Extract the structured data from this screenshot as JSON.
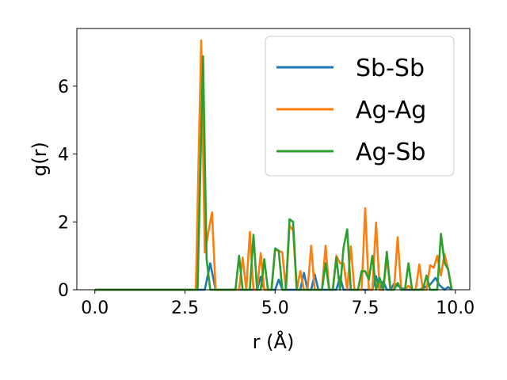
{
  "chart_data": {
    "type": "line",
    "title": "",
    "xlabel": "r (Å)",
    "ylabel": "g(r)",
    "xlim": [
      -0.5,
      10.4
    ],
    "ylim": [
      0,
      7.7
    ],
    "xticks": [
      0.0,
      2.5,
      5.0,
      7.5,
      10.0
    ],
    "xtick_labels": [
      "0.0",
      "2.5",
      "5.0",
      "7.5",
      "10.0"
    ],
    "yticks": [
      0,
      2,
      4,
      6
    ],
    "ytick_labels": [
      "0",
      "2",
      "4",
      "6"
    ],
    "grid": false,
    "legend_position": "top-right",
    "series": [
      {
        "name": "Sb-Sb",
        "color": "#1f77b4",
        "x": [
          0.0,
          2.7,
          2.85,
          2.95,
          3.05,
          3.2,
          3.35,
          4.5,
          4.6,
          4.7,
          5.0,
          5.1,
          5.2,
          5.7,
          5.8,
          5.9,
          6.0,
          6.1,
          6.2,
          6.7,
          6.8,
          6.9,
          7.7,
          7.8,
          7.9,
          8.0,
          8.1,
          8.2,
          8.3,
          8.6,
          8.8,
          9.0,
          9.3,
          9.45,
          9.55,
          9.7,
          9.8,
          9.9
        ],
        "y": [
          0.0,
          0.0,
          0.0,
          0.0,
          0.0,
          0.78,
          0.0,
          0.0,
          0.38,
          0.0,
          0.0,
          0.3,
          0.0,
          0.0,
          0.5,
          0.0,
          0.0,
          0.45,
          0.0,
          0.0,
          0.38,
          0.0,
          0.0,
          0.4,
          0.0,
          0.25,
          0.0,
          0.0,
          0.18,
          0.0,
          0.0,
          0.0,
          0.15,
          0.35,
          0.15,
          0.0,
          0.08,
          0.0
        ]
      },
      {
        "name": "Ag-Ag",
        "color": "#ff7f0e",
        "x": [
          0.0,
          2.7,
          2.8,
          2.95,
          3.05,
          3.15,
          3.25,
          3.35,
          3.9,
          4.0,
          4.1,
          4.2,
          4.3,
          4.4,
          4.5,
          4.6,
          4.7,
          4.8,
          4.9,
          5.0,
          5.1,
          5.2,
          5.3,
          5.4,
          5.5,
          5.6,
          5.7,
          5.8,
          5.9,
          6.0,
          6.1,
          6.2,
          6.3,
          6.4,
          6.5,
          6.6,
          6.7,
          6.8,
          6.9,
          7.0,
          7.1,
          7.2,
          7.3,
          7.4,
          7.5,
          7.6,
          7.7,
          7.8,
          7.9,
          8.0,
          8.1,
          8.2,
          8.3,
          8.4,
          8.5,
          8.6,
          8.7,
          8.8,
          8.9,
          9.0,
          9.1,
          9.2,
          9.3,
          9.4,
          9.5,
          9.6,
          9.7,
          9.8,
          9.9
        ],
        "y": [
          0.0,
          0.0,
          0.0,
          7.35,
          1.1,
          1.7,
          2.28,
          0.0,
          0.0,
          0.0,
          0.95,
          0.0,
          1.7,
          0.0,
          0.0,
          1.08,
          0.0,
          0.0,
          0.0,
          1.18,
          1.15,
          1.1,
          0.0,
          1.9,
          1.75,
          0.0,
          0.55,
          0.0,
          0.0,
          1.3,
          0.0,
          0.0,
          0.0,
          1.3,
          0.0,
          0.0,
          1.0,
          0.78,
          0.78,
          0.0,
          1.28,
          0.0,
          0.0,
          0.0,
          2.4,
          0.0,
          0.0,
          1.98,
          0.0,
          0.0,
          0.95,
          0.0,
          0.0,
          1.55,
          0.0,
          0.0,
          0.12,
          0.0,
          0.0,
          0.75,
          0.0,
          0.0,
          0.72,
          0.65,
          1.0,
          0.42,
          1.05,
          0.6,
          0.0
        ]
      },
      {
        "name": "Ag-Sb",
        "color": "#2ca02c",
        "x": [
          0.0,
          2.7,
          2.85,
          3.0,
          3.1,
          3.2,
          3.3,
          3.9,
          4.0,
          4.1,
          4.2,
          4.3,
          4.4,
          4.5,
          4.6,
          4.7,
          4.8,
          4.9,
          5.0,
          5.1,
          5.2,
          5.3,
          5.4,
          5.5,
          5.6,
          5.7,
          5.8,
          5.9,
          6.0,
          6.1,
          6.2,
          6.3,
          6.4,
          6.5,
          6.6,
          6.7,
          6.8,
          6.9,
          7.0,
          7.1,
          7.2,
          7.3,
          7.4,
          7.5,
          7.6,
          7.7,
          7.8,
          7.9,
          8.0,
          8.1,
          8.2,
          8.3,
          8.4,
          8.5,
          8.6,
          8.7,
          8.8,
          8.9,
          9.0,
          9.1,
          9.2,
          9.3,
          9.4,
          9.5,
          9.6,
          9.7,
          9.8,
          9.9
        ],
        "y": [
          0.0,
          0.0,
          0.0,
          6.88,
          0.9,
          0.0,
          0.0,
          0.0,
          1.0,
          0.0,
          0.0,
          0.0,
          1.62,
          0.0,
          0.0,
          0.9,
          0.0,
          0.0,
          1.22,
          1.15,
          0.0,
          0.0,
          2.08,
          2.0,
          0.0,
          0.0,
          0.0,
          0.0,
          0.0,
          0.0,
          0.0,
          0.0,
          0.78,
          0.0,
          0.0,
          0.95,
          0.0,
          1.25,
          1.78,
          0.0,
          0.0,
          0.0,
          0.55,
          0.55,
          0.3,
          1.0,
          0.0,
          0.35,
          0.0,
          1.12,
          0.0,
          0.0,
          0.2,
          0.0,
          0.0,
          0.78,
          0.0,
          0.0,
          0.0,
          0.0,
          0.42,
          0.0,
          0.0,
          0.0,
          1.65,
          0.8,
          0.6,
          0.0
        ]
      }
    ]
  }
}
